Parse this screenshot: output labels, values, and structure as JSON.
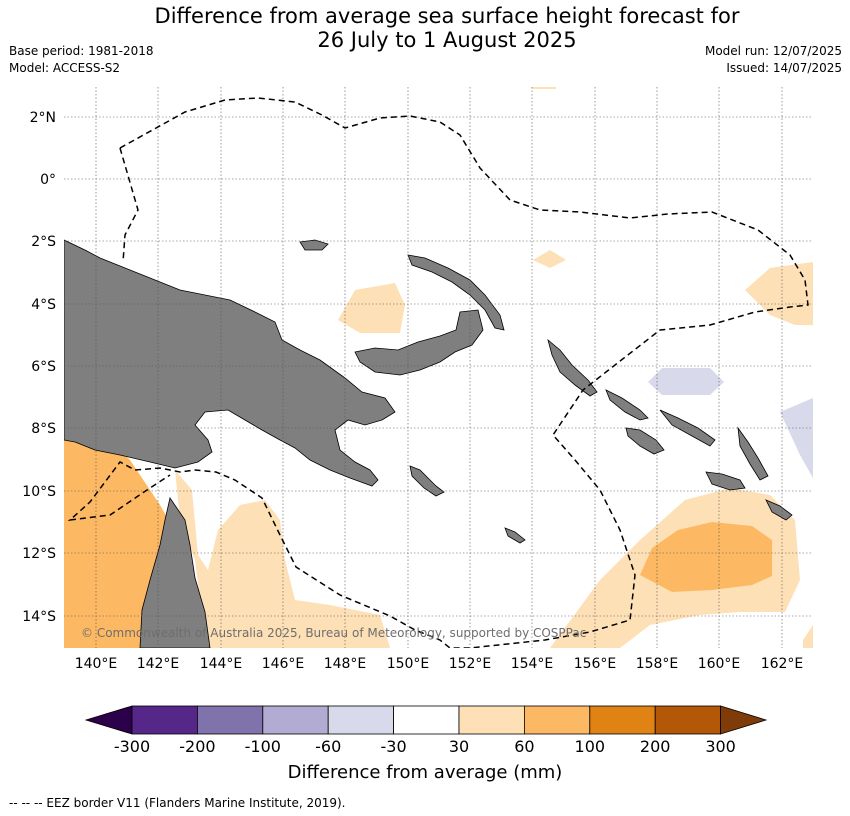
{
  "title": {
    "line1": "Difference from average sea surface height forecast for",
    "line2": "26 July to 1 August 2025"
  },
  "meta": {
    "base_period": "Base period: 1981-2018",
    "model": "Model: ACCESS-S2",
    "model_run": "Model run: 12/07/2025",
    "issued": "Issued: 14/07/2025"
  },
  "map": {
    "lon_labels": [
      "140°E",
      "142°E",
      "144°E",
      "146°E",
      "148°E",
      "150°E",
      "152°E",
      "154°E",
      "156°E",
      "158°E",
      "160°E",
      "162°E"
    ],
    "lat_labels": [
      "2°N",
      "0°",
      "2°S",
      "4°S",
      "6°S",
      "8°S",
      "10°S",
      "12°S",
      "14°S"
    ],
    "credit": "© Commonwealth of Australia 2025, Bureau of Meteorology, supported by COSPPac",
    "colors": {
      "land": "#7f7f7f",
      "ocean": "#ffffff",
      "grid": "#555555"
    }
  },
  "colorbar": {
    "title": "Difference from average (mm)",
    "tick_labels": [
      "-300",
      "-200",
      "-100",
      "-60",
      "-30",
      "30",
      "60",
      "100",
      "200",
      "300"
    ],
    "colors": [
      "#2d004b",
      "#542788",
      "#8073ac",
      "#b2abd2",
      "#d8daeb",
      "#ffffff",
      "#fee0b6",
      "#fdb863",
      "#e08214",
      "#b35806",
      "#7f3b08"
    ]
  },
  "footnote": "--  --  -- EEZ border V11 (Flanders Marine Institute, 2019)."
}
